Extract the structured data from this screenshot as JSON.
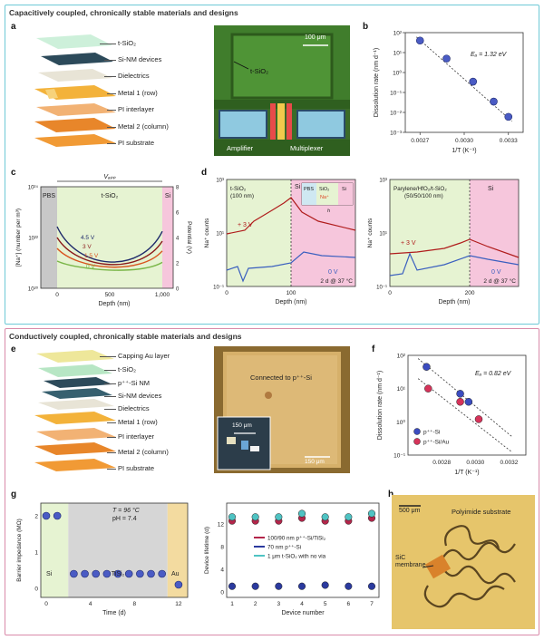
{
  "section_top": {
    "title": "Capacitively coupled, chronically stable materials and designs"
  },
  "section_bottom": {
    "title": "Conductively coupled, chronically stable materials and designs"
  },
  "panel_labels": {
    "a": "a",
    "b": "b",
    "c": "c",
    "d": "d",
    "e": "e",
    "f": "f",
    "g": "g",
    "h": "h"
  },
  "panel_a": {
    "layers": [
      "t-SiO₂",
      "Si-NM devices",
      "Dielectrics",
      "Metal 1 (row)",
      "PI interlayer",
      "Metal 2 (column)",
      "PI substrate"
    ],
    "micro_label": "t-SiO₂",
    "scale": "100 μm",
    "amplifier": "Amplifier",
    "multiplexer": "Multiplexer"
  },
  "panel_e": {
    "layers": [
      "Capping Au layer",
      "t-SiO₂",
      "p⁺⁺-Si NM",
      "Si-NM devices",
      "Dielectrics",
      "Metal 1 (row)",
      "PI interlayer",
      "Metal 2 (column)",
      "PI substrate"
    ],
    "connected": "Connected to p⁺⁺-Si",
    "scale_inset": "150 μm",
    "scale_main": "150 μm"
  },
  "panel_h": {
    "scale": "500 μm",
    "substrate": "Polyimide substrate",
    "membrane": "SiC membrane"
  },
  "chart_data": [
    {
      "id": "b",
      "type": "scatter",
      "xlabel": "1/T (K⁻¹)",
      "ylabel": "Dissolution rate (nm d⁻¹)",
      "annotation": "Eₐ = 1.32 eV",
      "xlim": [
        0.0026,
        0.0034
      ],
      "ylim_log": [
        -3,
        2
      ],
      "xticks": [
        "0.0027",
        "0.0030",
        "0.0033"
      ],
      "yticks": [
        "10⁻³",
        "10⁻²",
        "10⁻¹",
        "10⁰",
        "10¹",
        "10²"
      ],
      "x": [
        0.0027,
        0.00288,
        0.00306,
        0.0032,
        0.0033
      ],
      "y": [
        40,
        5,
        0.35,
        0.035,
        0.006
      ]
    },
    {
      "id": "c",
      "type": "line",
      "xlabel": "Depth (nm)",
      "ylabel": "[Na⁺] (number per m³)",
      "ylabel_right": "Potential (V)",
      "xticks": [
        "0",
        "500",
        "1,000"
      ],
      "yticks": [
        "10²⁰",
        "10²²",
        "10²⁴"
      ],
      "yticks_right": [
        "0",
        "2",
        "4",
        "6",
        "8"
      ],
      "regions": [
        "PBS",
        "t-SiO₂",
        "Si"
      ],
      "top_label": "Vₐₚₚ",
      "series": [
        {
          "name": "4.5 V",
          "color": "#1f2a6b"
        },
        {
          "name": "3 V",
          "color": "#8b1a1a"
        },
        {
          "name": "1.5 V",
          "color": "#d9531e"
        },
        {
          "name": "0 V",
          "color": "#7ab648"
        }
      ]
    },
    {
      "id": "d1",
      "type": "line",
      "xlabel": "Depth (nm)",
      "ylabel": "Na⁺ counts",
      "xticks": [
        "0",
        "100"
      ],
      "yticks": [
        "10⁻¹",
        "10¹",
        "10³"
      ],
      "region_left": "t-SiO₂ (100 nm)",
      "region_right": "Si",
      "footer": "2 d @ 37 °C",
      "series": [
        {
          "name": "+ 3 V",
          "color": "#b01c1c"
        },
        {
          "name": "0 V",
          "color": "#3a5fbf"
        }
      ],
      "inset": {
        "labels": [
          "PBS",
          "SiO₂",
          "Si",
          "Na⁺",
          "h"
        ]
      }
    },
    {
      "id": "d2",
      "type": "line",
      "xlabel": "Depth (nm)",
      "ylabel": "Na⁺ counts",
      "xticks": [
        "0",
        "200"
      ],
      "yticks": [
        "10⁻¹",
        "10¹",
        "10³"
      ],
      "region_left": "Parylene/HfO₂/t-SiO₂ (50/50/100 nm)",
      "region_right": "Si",
      "footer": "2 d @ 37 °C",
      "series": [
        {
          "name": "+ 3 V",
          "color": "#b01c1c"
        },
        {
          "name": "0 V",
          "color": "#3a5fbf"
        }
      ]
    },
    {
      "id": "f",
      "type": "scatter",
      "xlabel": "1/T (K⁻¹)",
      "ylabel": "Dissolution rate (nm d⁻¹)",
      "annotation": "Eₐ = 0.82 eV",
      "xticks": [
        "0.0028",
        "0.0030",
        "0.0032"
      ],
      "yticks": [
        "10⁻¹",
        "10⁰",
        "10¹",
        "10²"
      ],
      "xlim": [
        0.0026,
        0.0033
      ],
      "ylim_log": [
        -1,
        2
      ],
      "series": [
        {
          "name": "p⁺⁺-Si",
          "color": "#3b4cc0",
          "x": [
            0.00271,
            0.00291,
            0.00296
          ],
          "y": [
            45,
            7,
            4
          ]
        },
        {
          "name": "p⁺⁺-Si/Au",
          "color": "#d6335a",
          "x": [
            0.00272,
            0.00291,
            0.00302
          ],
          "y": [
            10,
            4,
            1.2
          ]
        }
      ]
    },
    {
      "id": "g1",
      "type": "scatter",
      "xlabel": "Time (d)",
      "ylabel": "Barrier impedance (MΩ)",
      "annotation": [
        "T = 96 °C",
        "pH = 7.4"
      ],
      "xticks": [
        "0",
        "4",
        "8",
        "12"
      ],
      "yticks": [
        "0",
        "1",
        "2"
      ],
      "regions": [
        "Si",
        "TiSi₂",
        "Au"
      ],
      "x": [
        0,
        1,
        2.5,
        3.5,
        4.5,
        5.5,
        6.5,
        7.5,
        8.5,
        9.5,
        10.5,
        12
      ],
      "y": [
        2,
        2,
        0.4,
        0.4,
        0.4,
        0.4,
        0.4,
        0.4,
        0.4,
        0.4,
        0.4,
        0.1
      ]
    },
    {
      "id": "g2",
      "type": "scatter",
      "xlabel": "Device number",
      "ylabel": "Device lifetime (d)",
      "xticks": [
        "1",
        "2",
        "3",
        "4",
        "5",
        "6",
        "7"
      ],
      "yticks": [
        "0",
        "4",
        "8",
        "12"
      ],
      "series": [
        {
          "name": "100/90 nm p⁺⁺-Si/TiSi₂",
          "color": "#b3264a",
          "x": [
            1,
            2,
            3,
            4,
            5,
            6,
            7
          ],
          "y": [
            12.5,
            12.5,
            12.5,
            13,
            12.5,
            12.5,
            13
          ]
        },
        {
          "name": "70 nm p⁺⁺-Si",
          "color": "#2b3a9e",
          "x": [
            1,
            2,
            3,
            4,
            5,
            6,
            7
          ],
          "y": [
            1,
            1,
            1,
            1,
            1.2,
            1,
            1
          ]
        },
        {
          "name": "1 μm t-SiO₂ with no via",
          "color": "#4fc3c3",
          "x": [
            1,
            2,
            3,
            4,
            5,
            6,
            7
          ],
          "y": [
            13.2,
            13.2,
            13.2,
            13.8,
            13.2,
            13.2,
            13.8
          ]
        }
      ]
    }
  ]
}
